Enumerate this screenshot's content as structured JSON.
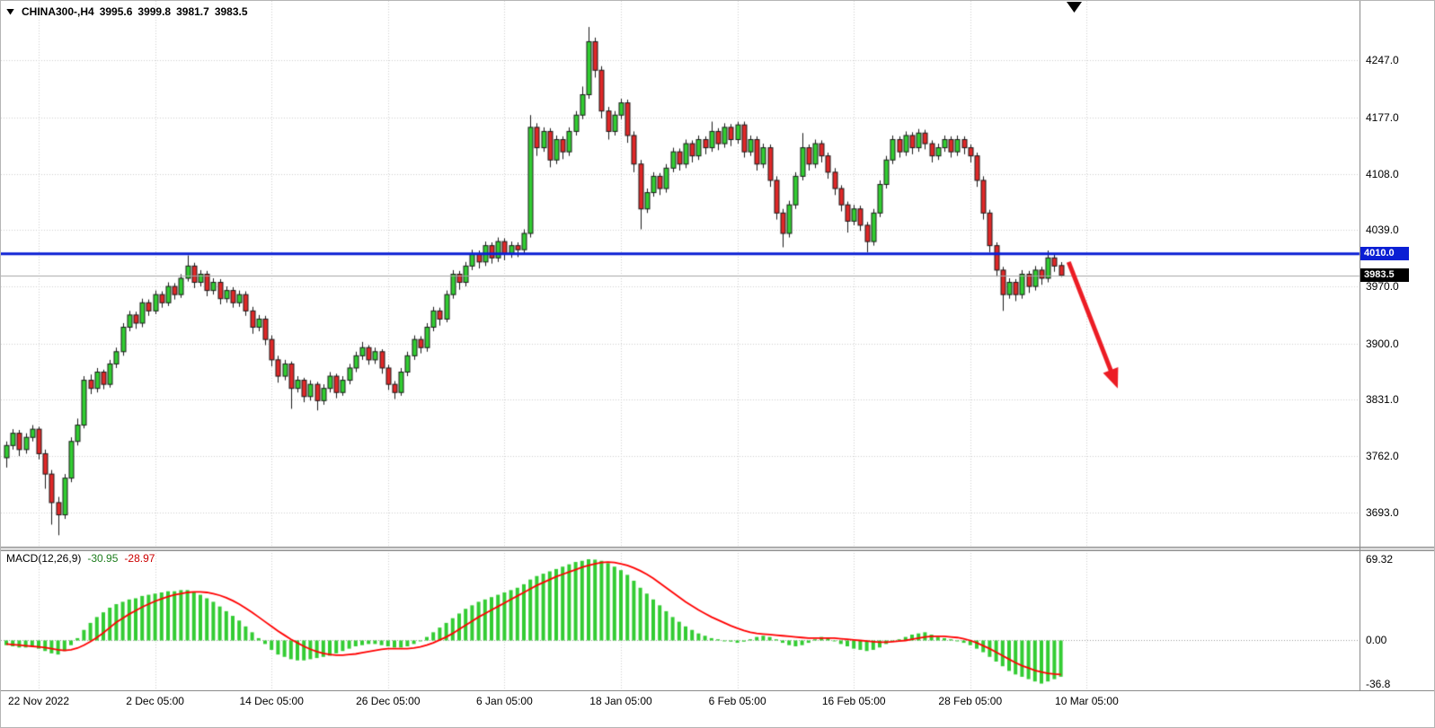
{
  "header": {
    "symbol": "CHINA300-,H4",
    "open": "3995.6",
    "high": "3999.8",
    "low": "3981.7",
    "close": "3983.5"
  },
  "macd_header": {
    "name": "MACD(12,26,9)",
    "main_value": "-30.95",
    "signal_value": "-28.97"
  },
  "badges": {
    "hline": "4010.0",
    "bid": "3983.5"
  },
  "colors": {
    "up_body": "#32cd32",
    "down_body": "#e02828",
    "wick": "#1a1a1a",
    "hline": "#0b1fd4",
    "badge_hline_bg": "#0b1fd4",
    "badge_bid_bg": "#000000",
    "macd_hist": "#33cc33",
    "macd_signal": "#ff0000",
    "grid": "#cfcfcf",
    "zero_line": "#9a9a9a",
    "bid_line": "#a6a6a6",
    "arrow": "#ec1c24",
    "text": "#000000"
  },
  "chart_data": {
    "type": "candlestick",
    "title": "CHINA300-,H4",
    "price_range": [
      3651,
      4320
    ],
    "price_ticks": [
      "4247.0",
      "4177.0",
      "4108.0",
      "4039.0",
      "3970.0",
      "3900.0",
      "3831.0",
      "3762.0",
      "3693.0"
    ],
    "time_ticks": [
      {
        "label": "22 Nov 2022",
        "candle": 5
      },
      {
        "label": "2 Dec 05:00",
        "candle": 23
      },
      {
        "label": "14 Dec 05:00",
        "candle": 41
      },
      {
        "label": "26 Dec 05:00",
        "candle": 59
      },
      {
        "label": "6 Jan 05:00",
        "candle": 77
      },
      {
        "label": "18 Jan 05:00",
        "candle": 95
      },
      {
        "label": "6 Feb 05:00",
        "candle": 113
      },
      {
        "label": "16 Feb 05:00",
        "candle": 131
      },
      {
        "label": "28 Feb 05:00",
        "candle": 149
      },
      {
        "label": "10 Mar 05:00",
        "candle": 167
      }
    ],
    "candles": [
      [
        3760,
        3780,
        3748,
        3775
      ],
      [
        3775,
        3795,
        3770,
        3790
      ],
      [
        3790,
        3794,
        3762,
        3770
      ],
      [
        3770,
        3790,
        3765,
        3785
      ],
      [
        3785,
        3800,
        3780,
        3795
      ],
      [
        3795,
        3798,
        3758,
        3765
      ],
      [
        3765,
        3770,
        3722,
        3740
      ],
      [
        3740,
        3745,
        3678,
        3705
      ],
      [
        3705,
        3712,
        3665,
        3690
      ],
      [
        3690,
        3740,
        3685,
        3735
      ],
      [
        3735,
        3785,
        3730,
        3780
      ],
      [
        3780,
        3808,
        3775,
        3800
      ],
      [
        3800,
        3860,
        3796,
        3855
      ],
      [
        3855,
        3862,
        3838,
        3845
      ],
      [
        3845,
        3870,
        3840,
        3865
      ],
      [
        3865,
        3868,
        3844,
        3850
      ],
      [
        3850,
        3880,
        3846,
        3875
      ],
      [
        3875,
        3895,
        3870,
        3890
      ],
      [
        3890,
        3925,
        3885,
        3920
      ],
      [
        3920,
        3940,
        3915,
        3935
      ],
      [
        3935,
        3939,
        3918,
        3925
      ],
      [
        3925,
        3955,
        3920,
        3950
      ],
      [
        3950,
        3954,
        3934,
        3940
      ],
      [
        3940,
        3965,
        3936,
        3960
      ],
      [
        3960,
        3964,
        3944,
        3950
      ],
      [
        3950,
        3975,
        3946,
        3970
      ],
      [
        3970,
        3974,
        3954,
        3960
      ],
      [
        3960,
        3985,
        3956,
        3980
      ],
      [
        3980,
        4008,
        3976,
        3995
      ],
      [
        3995,
        3999,
        3968,
        3975
      ],
      [
        3975,
        3990,
        3970,
        3985
      ],
      [
        3985,
        3989,
        3958,
        3965
      ],
      [
        3965,
        3980,
        3960,
        3975
      ],
      [
        3975,
        3979,
        3948,
        3955
      ],
      [
        3955,
        3970,
        3950,
        3965
      ],
      [
        3965,
        3969,
        3944,
        3950
      ],
      [
        3950,
        3965,
        3945,
        3960
      ],
      [
        3960,
        3964,
        3934,
        3940
      ],
      [
        3940,
        3945,
        3912,
        3920
      ],
      [
        3920,
        3935,
        3915,
        3930
      ],
      [
        3930,
        3934,
        3898,
        3905
      ],
      [
        3905,
        3910,
        3872,
        3880
      ],
      [
        3880,
        3885,
        3852,
        3860
      ],
      [
        3860,
        3880,
        3855,
        3875
      ],
      [
        3875,
        3878,
        3820,
        3845
      ],
      [
        3845,
        3860,
        3840,
        3855
      ],
      [
        3855,
        3858,
        3828,
        3835
      ],
      [
        3835,
        3855,
        3830,
        3850
      ],
      [
        3850,
        3853,
        3818,
        3830
      ],
      [
        3830,
        3850,
        3825,
        3845
      ],
      [
        3845,
        3865,
        3840,
        3860
      ],
      [
        3860,
        3863,
        3833,
        3840
      ],
      [
        3840,
        3860,
        3836,
        3855
      ],
      [
        3855,
        3875,
        3850,
        3870
      ],
      [
        3870,
        3890,
        3865,
        3885
      ],
      [
        3885,
        3902,
        3880,
        3895
      ],
      [
        3895,
        3898,
        3874,
        3880
      ],
      [
        3880,
        3895,
        3875,
        3890
      ],
      [
        3890,
        3893,
        3863,
        3870
      ],
      [
        3870,
        3874,
        3843,
        3850
      ],
      [
        3850,
        3854,
        3832,
        3840
      ],
      [
        3840,
        3870,
        3836,
        3865
      ],
      [
        3865,
        3890,
        3860,
        3885
      ],
      [
        3885,
        3910,
        3880,
        3905
      ],
      [
        3905,
        3909,
        3888,
        3895
      ],
      [
        3895,
        3925,
        3890,
        3920
      ],
      [
        3920,
        3945,
        3915,
        3940
      ],
      [
        3940,
        3944,
        3922,
        3930
      ],
      [
        3930,
        3965,
        3926,
        3960
      ],
      [
        3960,
        3990,
        3955,
        3985
      ],
      [
        3985,
        3989,
        3966,
        3975
      ],
      [
        3975,
        4000,
        3970,
        3995
      ],
      [
        3995,
        4015,
        3990,
        4010
      ],
      [
        4010,
        4014,
        3992,
        4000
      ],
      [
        4000,
        4025,
        3995,
        4020
      ],
      [
        4020,
        4024,
        3998,
        4005
      ],
      [
        4005,
        4030,
        4000,
        4025
      ],
      [
        4025,
        4029,
        4002,
        4010
      ],
      [
        4010,
        4025,
        4005,
        4020
      ],
      [
        4020,
        4024,
        4006,
        4015
      ],
      [
        4015,
        4040,
        4010,
        4035
      ],
      [
        4035,
        4180,
        4030,
        4165
      ],
      [
        4165,
        4170,
        4130,
        4140
      ],
      [
        4140,
        4165,
        4135,
        4160
      ],
      [
        4160,
        4164,
        4116,
        4125
      ],
      [
        4125,
        4155,
        4120,
        4150
      ],
      [
        4150,
        4154,
        4126,
        4135
      ],
      [
        4135,
        4165,
        4130,
        4160
      ],
      [
        4160,
        4185,
        4155,
        4180
      ],
      [
        4180,
        4215,
        4175,
        4205
      ],
      [
        4205,
        4288,
        4200,
        4270
      ],
      [
        4270,
        4275,
        4226,
        4235
      ],
      [
        4235,
        4240,
        4176,
        4185
      ],
      [
        4185,
        4190,
        4150,
        4160
      ],
      [
        4160,
        4185,
        4155,
        4180
      ],
      [
        4180,
        4200,
        4175,
        4195
      ],
      [
        4195,
        4199,
        4146,
        4155
      ],
      [
        4155,
        4160,
        4110,
        4120
      ],
      [
        4120,
        4125,
        4040,
        4065
      ],
      [
        4065,
        4090,
        4060,
        4085
      ],
      [
        4085,
        4110,
        4080,
        4105
      ],
      [
        4105,
        4109,
        4082,
        4090
      ],
      [
        4090,
        4120,
        4085,
        4115
      ],
      [
        4115,
        4140,
        4110,
        4135
      ],
      [
        4135,
        4139,
        4112,
        4120
      ],
      [
        4120,
        4150,
        4115,
        4145
      ],
      [
        4145,
        4149,
        4122,
        4130
      ],
      [
        4130,
        4155,
        4125,
        4150
      ],
      [
        4150,
        4154,
        4132,
        4140
      ],
      [
        4140,
        4172,
        4135,
        4160
      ],
      [
        4160,
        4164,
        4137,
        4145
      ],
      [
        4145,
        4170,
        4140,
        4165
      ],
      [
        4165,
        4169,
        4142,
        4150
      ],
      [
        4150,
        4172,
        4145,
        4168
      ],
      [
        4168,
        4172,
        4128,
        4135
      ],
      [
        4135,
        4155,
        4130,
        4150
      ],
      [
        4150,
        4154,
        4112,
        4120
      ],
      [
        4120,
        4145,
        4115,
        4140
      ],
      [
        4140,
        4144,
        4092,
        4100
      ],
      [
        4100,
        4105,
        4052,
        4060
      ],
      [
        4060,
        4065,
        4018,
        4035
      ],
      [
        4035,
        4075,
        4030,
        4070
      ],
      [
        4070,
        4110,
        4065,
        4105
      ],
      [
        4105,
        4158,
        4100,
        4140
      ],
      [
        4140,
        4144,
        4112,
        4120
      ],
      [
        4120,
        4150,
        4115,
        4145
      ],
      [
        4145,
        4149,
        4122,
        4130
      ],
      [
        4130,
        4134,
        4102,
        4110
      ],
      [
        4110,
        4115,
        4082,
        4090
      ],
      [
        4090,
        4094,
        4062,
        4070
      ],
      [
        4070,
        4074,
        4036,
        4050
      ],
      [
        4050,
        4070,
        4045,
        4065
      ],
      [
        4065,
        4069,
        4038,
        4045
      ],
      [
        4045,
        4049,
        4012,
        4025
      ],
      [
        4025,
        4065,
        4020,
        4060
      ],
      [
        4060,
        4100,
        4055,
        4095
      ],
      [
        4095,
        4130,
        4090,
        4125
      ],
      [
        4125,
        4155,
        4120,
        4150
      ],
      [
        4150,
        4154,
        4128,
        4135
      ],
      [
        4135,
        4160,
        4130,
        4155
      ],
      [
        4155,
        4159,
        4132,
        4140
      ],
      [
        4140,
        4163,
        4135,
        4158
      ],
      [
        4158,
        4162,
        4138,
        4145
      ],
      [
        4145,
        4149,
        4122,
        4130
      ],
      [
        4130,
        4145,
        4125,
        4140
      ],
      [
        4140,
        4155,
        4135,
        4150
      ],
      [
        4150,
        4154,
        4128,
        4135
      ],
      [
        4135,
        4155,
        4130,
        4150
      ],
      [
        4150,
        4154,
        4132,
        4140
      ],
      [
        4140,
        4144,
        4122,
        4130
      ],
      [
        4130,
        4134,
        4092,
        4100
      ],
      [
        4100,
        4105,
        4052,
        4060
      ],
      [
        4060,
        4064,
        4012,
        4020
      ],
      [
        4020,
        4024,
        3982,
        3990
      ],
      [
        3990,
        3994,
        3940,
        3960
      ],
      [
        3960,
        3980,
        3955,
        3975
      ],
      [
        3975,
        3979,
        3952,
        3960
      ],
      [
        3960,
        3990,
        3955,
        3985
      ],
      [
        3985,
        3989,
        3962,
        3970
      ],
      [
        3970,
        3995,
        3965,
        3990
      ],
      [
        3990,
        3994,
        3972,
        3980
      ],
      [
        3980,
        4014,
        3975,
        4005
      ],
      [
        4005,
        4009,
        3988,
        3995
      ],
      [
        3995.6,
        3999.8,
        3981.7,
        3983.5
      ]
    ],
    "overlay": {
      "hline": 4010.0,
      "bid": 3983.5,
      "arrow": {
        "start_candle": 164.2,
        "start_price": 4000,
        "end_candle": 171.8,
        "end_price": 3845
      }
    },
    "macd": {
      "type": "bar+line",
      "params": "12,26,9",
      "range": [
        -41,
        77
      ],
      "ticks": [
        "69.32",
        "0.00",
        "-36.8"
      ],
      "current": {
        "main": -30.95,
        "signal": -28.97
      },
      "histogram": [
        -4,
        -5,
        -6,
        -6,
        -5,
        -7,
        -9,
        -11,
        -12,
        -9,
        -4,
        2,
        9,
        15,
        20,
        24,
        28,
        31,
        33,
        35,
        36,
        38,
        39,
        40,
        41,
        42,
        42,
        43,
        43,
        41,
        39,
        36,
        33,
        29,
        25,
        21,
        17,
        12,
        7,
        2,
        -3,
        -8,
        -12,
        -14,
        -16,
        -17,
        -17,
        -16,
        -15,
        -14,
        -13,
        -11,
        -9,
        -7,
        -5,
        -4,
        -3,
        -3,
        -4,
        -5,
        -6,
        -6,
        -5,
        -3,
        0,
        3,
        7,
        11,
        15,
        19,
        23,
        27,
        30,
        33,
        35,
        37,
        39,
        41,
        43,
        45,
        48,
        52,
        55,
        57,
        59,
        61,
        63,
        65,
        67,
        68,
        69.32,
        69,
        68,
        66,
        63,
        60,
        56,
        51,
        45,
        40,
        35,
        30,
        25,
        20,
        16,
        12,
        9,
        6,
        4,
        2,
        1,
        0,
        -1,
        -2,
        -1,
        1,
        3,
        4,
        3,
        1,
        -2,
        -4,
        -5,
        -4,
        -2,
        1,
        3,
        2,
        0,
        -3,
        -5,
        -7,
        -8,
        -9,
        -8,
        -6,
        -3,
        -1,
        1,
        3,
        5,
        6,
        7,
        5,
        3,
        2,
        1,
        0,
        -2,
        -4,
        -7,
        -10,
        -14,
        -18,
        -22,
        -26,
        -29,
        -31,
        -33,
        -35,
        -36.8,
        -35,
        -33,
        -30.95
      ],
      "signal": [
        -3,
        -3.5,
        -4,
        -4.5,
        -5,
        -5.5,
        -6,
        -7,
        -8,
        -8.5,
        -8,
        -6.5,
        -4,
        -1,
        2.5,
        6.5,
        11,
        15.5,
        19,
        22.5,
        25.5,
        28.5,
        31,
        33.5,
        35.5,
        37.5,
        39,
        40,
        41,
        41.5,
        41.5,
        41,
        40,
        38.5,
        36.5,
        34,
        31,
        27.5,
        24,
        20,
        16,
        12,
        8,
        4.5,
        1,
        -2,
        -5,
        -7.5,
        -9.5,
        -11,
        -12,
        -12.5,
        -12.5,
        -12,
        -11.5,
        -10.5,
        -9.5,
        -8.5,
        -7.5,
        -7,
        -7,
        -7,
        -7,
        -6.5,
        -5.5,
        -4,
        -2,
        0.5,
        3,
        6,
        9.5,
        13,
        16.5,
        20,
        23,
        26,
        29,
        32,
        35,
        38,
        41,
        44,
        47,
        49.5,
        52,
        54.5,
        56.5,
        58.5,
        60.5,
        62.5,
        64,
        65.5,
        66.5,
        67,
        66.5,
        65.5,
        64,
        62,
        59.5,
        56.5,
        53,
        49,
        45,
        41,
        37,
        33,
        29.5,
        26,
        23,
        20,
        17.5,
        15,
        12.5,
        10.5,
        8.5,
        7,
        6,
        5.5,
        5,
        4.5,
        4,
        3.5,
        3,
        2.5,
        2,
        2,
        2,
        2,
        2,
        1.5,
        1,
        0.5,
        0,
        -0.5,
        -1,
        -1.5,
        -1.5,
        -1,
        -0.5,
        0,
        1,
        2,
        3,
        3.5,
        3.5,
        3.5,
        3,
        2.5,
        1.5,
        0,
        -2,
        -4.5,
        -7,
        -10,
        -13,
        -16,
        -19,
        -21.5,
        -23.5,
        -25.5,
        -27,
        -28,
        -28.6,
        -28.97
      ]
    }
  }
}
